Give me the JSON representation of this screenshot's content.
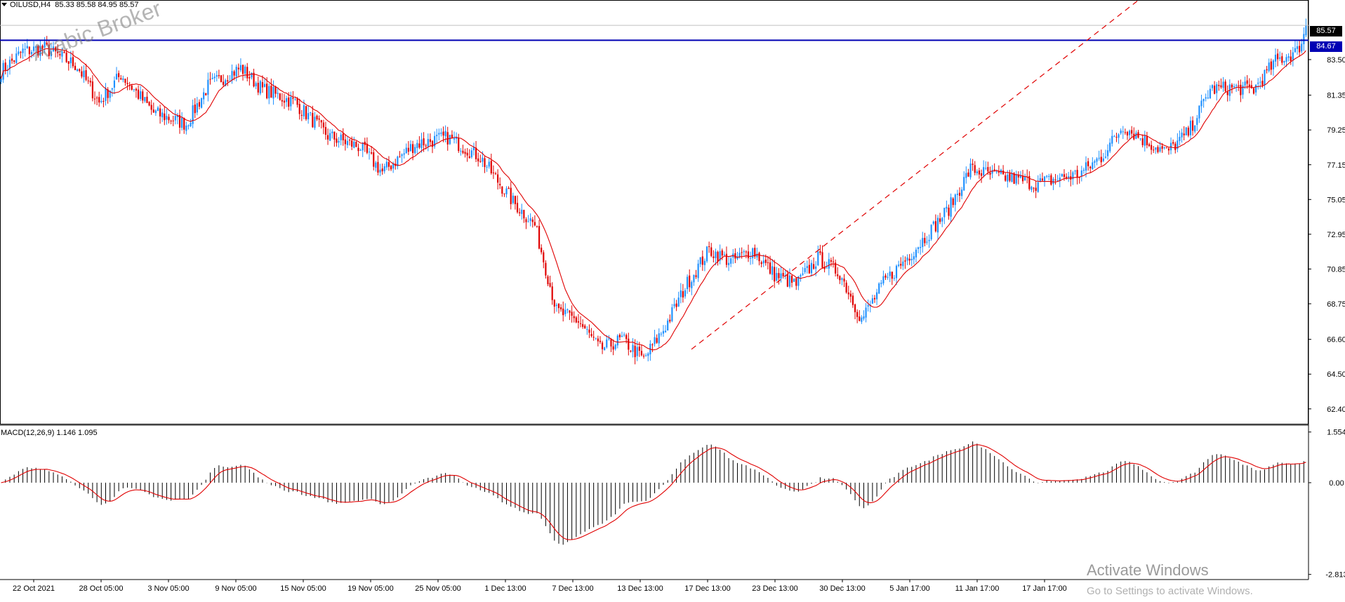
{
  "header": {
    "symbol_timeframe": "OILUSD,H4",
    "ohlc": "85.33 85.58 84.95 85.57"
  },
  "watermark": "Arabic Broker",
  "activate": {
    "title": "Activate Windows",
    "subtitle": "Go to Settings to activate Windows."
  },
  "colors": {
    "bull": "#1e90ff",
    "bear": "#e00000",
    "ma": "#e00000",
    "hline": "#0000b4",
    "trend": "#e00000",
    "histogram": "#000000",
    "signal": "#e00000"
  },
  "chart_data": [
    {
      "type": "candlestick",
      "title": "",
      "y_ticks": [
        "83.50",
        "81.35",
        "79.25",
        "77.15",
        "75.05",
        "72.95",
        "70.85",
        "68.75",
        "66.60",
        "64.50",
        "62.40"
      ],
      "ylim": [
        61.5,
        87.1
      ],
      "x_ticks": [
        "22 Oct 2021",
        "28 Oct 05:00",
        "3 Nov 05:00",
        "9 Nov 05:00",
        "15 Nov 05:00",
        "19 Nov 05:00",
        "25 Nov 05:00",
        "1 Dec 13:00",
        "7 Dec 13:00",
        "13 Dec 13:00",
        "17 Dec 13:00",
        "23 Dec 13:00",
        "30 Dec 13:00",
        "5 Jan 17:00",
        "11 Jan 17:00",
        "17 Jan 17:00"
      ],
      "price_path": [
        [
          0,
          82.8
        ],
        [
          10,
          84.0
        ],
        [
          20,
          84.2
        ],
        [
          35,
          83.1
        ],
        [
          45,
          80.9
        ],
        [
          55,
          82.6
        ],
        [
          70,
          80.3
        ],
        [
          85,
          79.6
        ],
        [
          95,
          81.9
        ],
        [
          110,
          83.0
        ],
        [
          120,
          81.7
        ],
        [
          135,
          80.9
        ],
        [
          150,
          78.9
        ],
        [
          165,
          78.2
        ],
        [
          175,
          76.7
        ],
        [
          190,
          78.4
        ],
        [
          205,
          78.8
        ],
        [
          220,
          77.6
        ],
        [
          235,
          74.9
        ],
        [
          245,
          73.5
        ],
        [
          255,
          68.3
        ],
        [
          265,
          67.7
        ],
        [
          275,
          66.0
        ],
        [
          285,
          66.6
        ],
        [
          295,
          65.4
        ],
        [
          305,
          67.4
        ],
        [
          315,
          70.0
        ],
        [
          325,
          72.0
        ],
        [
          335,
          71.3
        ],
        [
          345,
          72.0
        ],
        [
          355,
          70.5
        ],
        [
          365,
          69.9
        ],
        [
          375,
          71.5
        ],
        [
          385,
          70.6
        ],
        [
          395,
          67.8
        ],
        [
          405,
          70.0
        ],
        [
          415,
          71.4
        ],
        [
          425,
          72.9
        ],
        [
          435,
          74.5
        ],
        [
          445,
          76.9
        ],
        [
          455,
          76.5
        ],
        [
          465,
          76.3
        ],
        [
          475,
          76.0
        ],
        [
          485,
          76.3
        ],
        [
          495,
          76.6
        ],
        [
          505,
          77.6
        ],
        [
          515,
          79.5
        ],
        [
          525,
          78.6
        ],
        [
          535,
          77.9
        ],
        [
          545,
          79.1
        ],
        [
          555,
          81.7
        ],
        [
          565,
          81.8
        ],
        [
          575,
          81.7
        ],
        [
          585,
          83.4
        ],
        [
          595,
          84.0
        ],
        [
          600,
          85.57
        ]
      ],
      "current_price": "85.57",
      "horizontal_level": "84.67",
      "moving_average": "red line",
      "trendline": {
        "from": [
          0,
          66.0
        ],
        "to": [
          1,
          87.1
        ],
        "style": "dashed"
      }
    },
    {
      "type": "macd",
      "title": "MACD(12,26,9) 1.146 1.095",
      "y_ticks": [
        "1.554",
        "0.00",
        "-2.813"
      ],
      "ylim": [
        -2.97,
        1.72
      ],
      "current": {
        "macd": 1.146,
        "signal": 1.095
      }
    }
  ]
}
